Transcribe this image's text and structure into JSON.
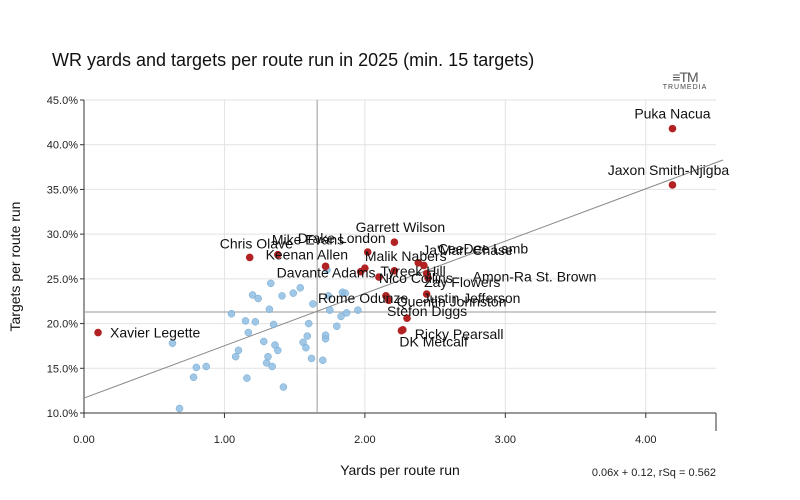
{
  "chart_data": {
    "type": "scatter",
    "title": "WR yards and targets per route run in 2025 (min. 15 targets)",
    "xlabel": "Yards per route run",
    "ylabel": "Targets per route run",
    "xlim": [
      0,
      4.5
    ],
    "ylim": [
      0.1,
      0.45
    ],
    "xticks": [
      0,
      1,
      2,
      3,
      4
    ],
    "xtick_labels": [
      "0.00",
      "1.00",
      "2.00",
      "3.00",
      "4.00"
    ],
    "yticks": [
      0.1,
      0.15,
      0.2,
      0.25,
      0.3,
      0.35,
      0.4,
      0.45
    ],
    "ytick_labels": [
      "10.0%",
      "15.0%",
      "20.0%",
      "25.0%",
      "30.0%",
      "35.0%",
      "40.0%",
      "45.0%"
    ],
    "mean_x": 1.66,
    "mean_y": 0.213,
    "regression": {
      "slope": 0.06,
      "intercept": 0.12,
      "rsq": 0.562,
      "label": "0.06x + 0.12, rSq = 0.562"
    },
    "source": "TRUMEDIA",
    "highlight_color": "#b22222",
    "other_color": "#8fbde0",
    "highlighted": [
      {
        "name": "Puka Nacua",
        "x": 4.19,
        "y": 0.418
      },
      {
        "name": "Jaxon Smith-Njigba",
        "x": 4.19,
        "y": 0.355
      },
      {
        "name": "Garrett Wilson",
        "x": 2.21,
        "y": 0.291
      },
      {
        "name": "Mike Evans",
        "x": 1.38,
        "y": 0.277
      },
      {
        "name": "Chris Olave",
        "x": 1.18,
        "y": 0.274
      },
      {
        "name": "Drake London",
        "x": 2.02,
        "y": 0.28
      },
      {
        "name": "Keenan Allen",
        "x": 1.72,
        "y": 0.264
      },
      {
        "name": "Malik Nabers",
        "x": 2.0,
        "y": 0.262
      },
      {
        "name": "CeeDee Lamb",
        "x": 2.42,
        "y": 0.265
      },
      {
        "name": "Ja'Marr Chase",
        "x": 2.38,
        "y": 0.268
      },
      {
        "name": "Tyreek Hill",
        "x": 2.21,
        "y": 0.259
      },
      {
        "name": "Amon-Ra St. Brown",
        "x": 2.44,
        "y": 0.256
      },
      {
        "name": "Davante Adams",
        "x": 1.97,
        "y": 0.258
      },
      {
        "name": "Nico Collins",
        "x": 2.1,
        "y": 0.252
      },
      {
        "name": "Zay Flowers",
        "x": 2.45,
        "y": 0.251
      },
      {
        "name": "Rome Odunze",
        "x": 2.15,
        "y": 0.231
      },
      {
        "name": "Justin Jefferson",
        "x": 2.44,
        "y": 0.233
      },
      {
        "name": "Quentin Johnston",
        "x": 2.17,
        "y": 0.226
      },
      {
        "name": "Stefon Diggs",
        "x": 2.3,
        "y": 0.206
      },
      {
        "name": "Ricky Pearsall",
        "x": 2.27,
        "y": 0.193
      },
      {
        "name": "DK Metcalf",
        "x": 2.26,
        "y": 0.192
      },
      {
        "name": "Xavier Legette",
        "x": 0.1,
        "y": 0.19
      }
    ],
    "others": [
      {
        "x": 0.68,
        "y": 0.105
      },
      {
        "x": 0.78,
        "y": 0.14
      },
      {
        "x": 0.8,
        "y": 0.151
      },
      {
        "x": 0.87,
        "y": 0.152
      },
      {
        "x": 0.63,
        "y": 0.178
      },
      {
        "x": 1.05,
        "y": 0.211
      },
      {
        "x": 1.1,
        "y": 0.17
      },
      {
        "x": 1.08,
        "y": 0.163
      },
      {
        "x": 1.15,
        "y": 0.203
      },
      {
        "x": 1.17,
        "y": 0.19
      },
      {
        "x": 1.2,
        "y": 0.232
      },
      {
        "x": 1.22,
        "y": 0.202
      },
      {
        "x": 1.24,
        "y": 0.228
      },
      {
        "x": 1.16,
        "y": 0.139
      },
      {
        "x": 1.28,
        "y": 0.18
      },
      {
        "x": 1.3,
        "y": 0.156
      },
      {
        "x": 1.31,
        "y": 0.163
      },
      {
        "x": 1.32,
        "y": 0.216
      },
      {
        "x": 1.33,
        "y": 0.245
      },
      {
        "x": 1.35,
        "y": 0.199
      },
      {
        "x": 1.36,
        "y": 0.176
      },
      {
        "x": 1.34,
        "y": 0.152
      },
      {
        "x": 1.38,
        "y": 0.17
      },
      {
        "x": 1.41,
        "y": 0.231
      },
      {
        "x": 1.42,
        "y": 0.129
      },
      {
        "x": 1.49,
        "y": 0.234
      },
      {
        "x": 1.54,
        "y": 0.24
      },
      {
        "x": 1.56,
        "y": 0.179
      },
      {
        "x": 1.58,
        "y": 0.173
      },
      {
        "x": 1.59,
        "y": 0.186
      },
      {
        "x": 1.6,
        "y": 0.2
      },
      {
        "x": 1.62,
        "y": 0.161
      },
      {
        "x": 1.63,
        "y": 0.222
      },
      {
        "x": 1.7,
        "y": 0.159
      },
      {
        "x": 1.72,
        "y": 0.183
      },
      {
        "x": 1.72,
        "y": 0.187
      },
      {
        "x": 1.74,
        "y": 0.231
      },
      {
        "x": 1.75,
        "y": 0.215
      },
      {
        "x": 1.8,
        "y": 0.197
      },
      {
        "x": 1.83,
        "y": 0.208
      },
      {
        "x": 1.84,
        "y": 0.235
      },
      {
        "x": 1.86,
        "y": 0.234
      },
      {
        "x": 1.87,
        "y": 0.212
      },
      {
        "x": 1.95,
        "y": 0.215
      },
      {
        "x": 1.73,
        "y": 0.26
      }
    ]
  }
}
